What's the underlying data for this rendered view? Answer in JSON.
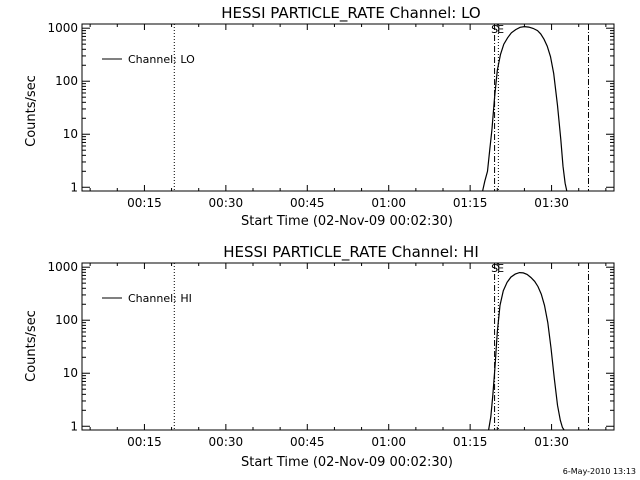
{
  "footer": {
    "timestamp": "6-May-2010 13:13"
  },
  "chart_data": [
    {
      "type": "line",
      "title": "HESSI PARTICLE_RATE Channel: LO",
      "xlabel": "Start Time (02-Nov-09 00:02:30)",
      "ylabel": "Counts/sec",
      "yscale": "log",
      "xlim_minutes": [
        3.5,
        101.5
      ],
      "ylim": [
        0.85,
        1200
      ],
      "x_ticks": [
        {
          "minute": 15,
          "label": "00:15"
        },
        {
          "minute": 30,
          "label": "00:30"
        },
        {
          "minute": 45,
          "label": "00:45"
        },
        {
          "minute": 60,
          "label": "01:00"
        },
        {
          "minute": 75,
          "label": "01:15"
        },
        {
          "minute": 90,
          "label": "01:30"
        }
      ],
      "y_ticks": [
        {
          "value": 1,
          "label": "1"
        },
        {
          "value": 10,
          "label": "10"
        },
        {
          "value": 100,
          "label": "100"
        },
        {
          "value": 1000,
          "label": "1000"
        }
      ],
      "legend": {
        "label": "Channel: LO",
        "position": "top-left"
      },
      "vlines": [
        {
          "minute": 20.5,
          "style": "dotted"
        },
        {
          "minute": 79.5,
          "style": "dashdot"
        },
        {
          "minute": 80.2,
          "style": "dotted"
        },
        {
          "minute": 96.8,
          "style": "dashdot"
        }
      ],
      "markers": [
        {
          "minute": 79.5,
          "text": "S"
        },
        {
          "minute": 80.6,
          "text": "E"
        }
      ],
      "series": [
        {
          "minutes": [
            77.3,
            77.7,
            78.2,
            78.6,
            79.0,
            79.5,
            80.0,
            80.6,
            81.2,
            81.9,
            82.6,
            83.4,
            84.2,
            85.0,
            85.8,
            86.6,
            87.4,
            88.0,
            88.6,
            89.2,
            89.8,
            90.4,
            91.1,
            91.7,
            92.1,
            92.5,
            92.8
          ],
          "values": [
            0.85,
            1.3,
            2.0,
            5.0,
            12,
            50,
            160,
            320,
            500,
            660,
            820,
            940,
            1040,
            1070,
            1050,
            990,
            900,
            780,
            620,
            460,
            290,
            140,
            35,
            8,
            2.5,
            1.2,
            0.85
          ]
        }
      ]
    },
    {
      "type": "line",
      "title": "HESSI PARTICLE_RATE Channel: HI",
      "xlabel": "Start Time (02-Nov-09 00:02:30)",
      "ylabel": "Counts/sec",
      "yscale": "log",
      "xlim_minutes": [
        3.5,
        101.5
      ],
      "ylim": [
        0.85,
        1200
      ],
      "x_ticks": [
        {
          "minute": 15,
          "label": "00:15"
        },
        {
          "minute": 30,
          "label": "00:30"
        },
        {
          "minute": 45,
          "label": "00:45"
        },
        {
          "minute": 60,
          "label": "01:00"
        },
        {
          "minute": 75,
          "label": "01:15"
        },
        {
          "minute": 90,
          "label": "01:30"
        }
      ],
      "y_ticks": [
        {
          "value": 1,
          "label": "1"
        },
        {
          "value": 10,
          "label": "10"
        },
        {
          "value": 100,
          "label": "100"
        },
        {
          "value": 1000,
          "label": "1000"
        }
      ],
      "legend": {
        "label": "Channel: HI",
        "position": "top-left"
      },
      "vlines": [
        {
          "minute": 20.5,
          "style": "dotted"
        },
        {
          "minute": 79.5,
          "style": "dashdot"
        },
        {
          "minute": 80.2,
          "style": "dotted"
        },
        {
          "minute": 96.8,
          "style": "dashdot"
        }
      ],
      "markers": [
        {
          "minute": 79.5,
          "text": "S"
        },
        {
          "minute": 80.6,
          "text": "E"
        }
      ],
      "series": [
        {
          "minutes": [
            78.4,
            78.8,
            79.2,
            79.6,
            80.0,
            80.5,
            81.1,
            81.8,
            82.5,
            83.3,
            84.1,
            84.8,
            85.5,
            86.2,
            86.9,
            87.5,
            88.1,
            88.7,
            89.3,
            89.9,
            90.5,
            91.1,
            91.6,
            92.0,
            92.3
          ],
          "values": [
            0.85,
            1.5,
            4.0,
            14,
            60,
            190,
            360,
            520,
            650,
            740,
            790,
            780,
            730,
            640,
            540,
            430,
            310,
            190,
            90,
            30,
            8,
            2.5,
            1.3,
            0.95,
            0.85
          ]
        }
      ]
    }
  ]
}
